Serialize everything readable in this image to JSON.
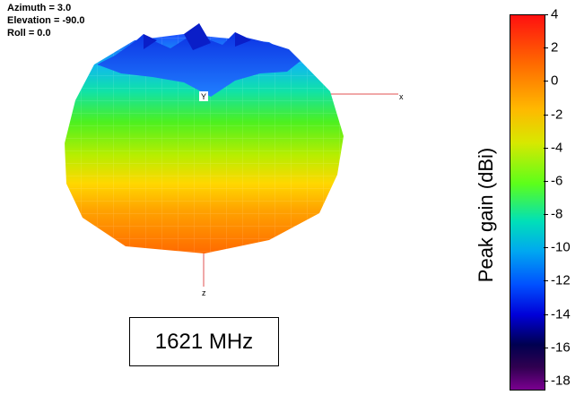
{
  "view": {
    "azimuth": "Azimuth = 3.0",
    "elevation": "Elevation = -90.0",
    "roll": "Roll = 0.0"
  },
  "axes": {
    "x": "x",
    "y": "Y",
    "z": "z"
  },
  "frequency_label": "1621 MHz",
  "colorbar": {
    "title": "Peak gain (dBi)",
    "ticks": [
      "4",
      "2",
      "0",
      "-2",
      "-4",
      "-6",
      "-8",
      "-10",
      "-12",
      "-14",
      "-16",
      "-18"
    ],
    "range": [
      -18,
      4
    ],
    "colors": {
      "max": "#ff1010",
      "min": "#7a0090"
    }
  }
}
